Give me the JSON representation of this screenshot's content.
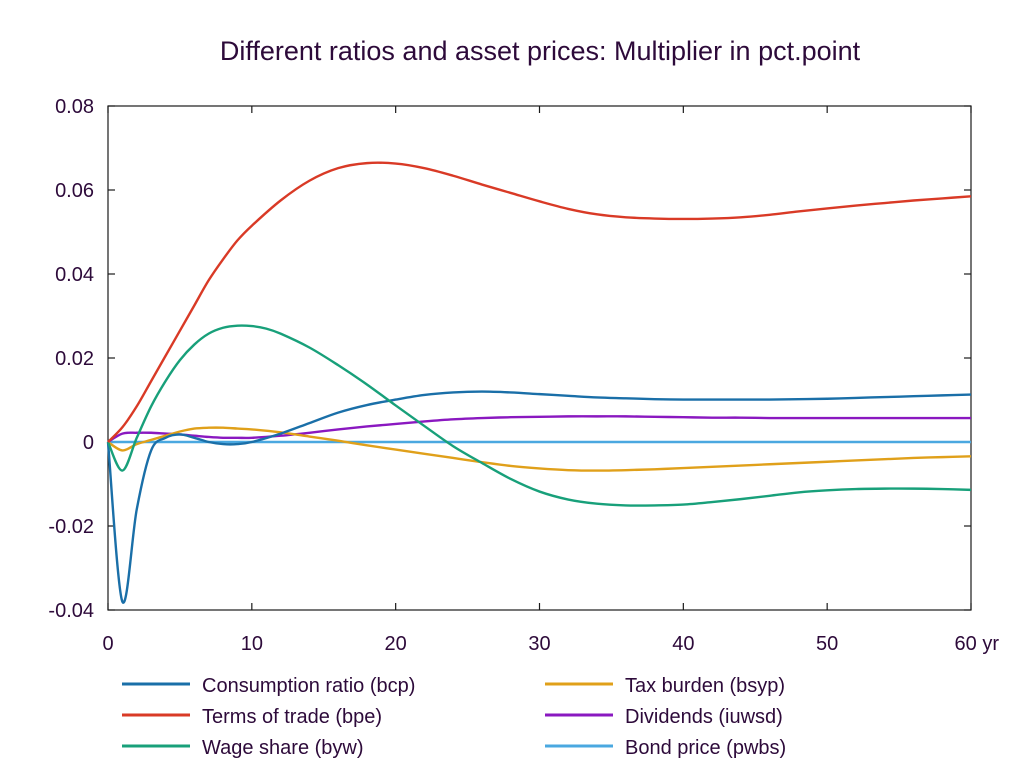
{
  "chart_data": {
    "type": "line",
    "title": "Different ratios and asset prices: Multiplier in pct.point",
    "xlabel": "",
    "ylabel": "",
    "xlim": [
      0,
      60
    ],
    "ylim": [
      -0.04,
      0.08
    ],
    "x_ticks": [
      0,
      10,
      20,
      30,
      40,
      50,
      60
    ],
    "x_tick_labels": [
      "0",
      "10",
      "20",
      "30",
      "40",
      "50",
      "60 yr"
    ],
    "y_ticks": [
      -0.04,
      -0.02,
      0,
      0.02,
      0.04,
      0.06,
      0.08
    ],
    "y_tick_labels": [
      "-0.04",
      "-0.02",
      "0",
      "0.02",
      "0.04",
      "0.06",
      "0.08"
    ],
    "grid": false,
    "legend_position": "bottom",
    "series": [
      {
        "name": "Consumption ratio (bcp)",
        "color": "#1a6fa8",
        "x": [
          0,
          1,
          2,
          3,
          4,
          5,
          6,
          7,
          8,
          9,
          10,
          12,
          14,
          16,
          18,
          20,
          22,
          24,
          26,
          28,
          30,
          32,
          34,
          36,
          38,
          40,
          42,
          44,
          46,
          48,
          50,
          52,
          54,
          56,
          58,
          60
        ],
        "y": [
          0,
          -0.038,
          -0.016,
          -0.002,
          0.001,
          0.0018,
          0.001,
          0,
          -0.0005,
          -0.0005,
          0,
          0.002,
          0.0045,
          0.007,
          0.0088,
          0.0101,
          0.0112,
          0.0118,
          0.012,
          0.0118,
          0.0114,
          0.011,
          0.0106,
          0.0104,
          0.0102,
          0.0101,
          0.0101,
          0.0101,
          0.0101,
          0.0102,
          0.0103,
          0.0105,
          0.0107,
          0.0109,
          0.0111,
          0.0113
        ]
      },
      {
        "name": "Terms of trade (bpe)",
        "color": "#d93a26",
        "x": [
          0,
          1,
          2,
          3,
          4,
          5,
          6,
          7,
          8,
          9,
          10,
          12,
          14,
          16,
          18,
          20,
          22,
          24,
          26,
          28,
          30,
          32,
          34,
          36,
          38,
          40,
          42,
          44,
          46,
          48,
          50,
          52,
          54,
          56,
          58,
          60
        ],
        "y": [
          0,
          0.0035,
          0.0085,
          0.0145,
          0.0205,
          0.0265,
          0.0325,
          0.0385,
          0.0435,
          0.048,
          0.0515,
          0.0575,
          0.0622,
          0.0652,
          0.0664,
          0.0663,
          0.0652,
          0.0634,
          0.0613,
          0.0593,
          0.0573,
          0.0555,
          0.0542,
          0.0535,
          0.0532,
          0.0531,
          0.0532,
          0.0535,
          0.0541,
          0.0549,
          0.0556,
          0.0563,
          0.0569,
          0.0575,
          0.058,
          0.0585
        ]
      },
      {
        "name": "Wage share (byw)",
        "color": "#18a07a",
        "x": [
          0,
          1,
          2,
          3,
          4,
          5,
          6,
          7,
          8,
          9,
          10,
          11,
          12,
          14,
          16,
          18,
          20,
          22,
          24,
          26,
          28,
          30,
          32,
          34,
          36,
          38,
          40,
          42,
          44,
          46,
          48,
          50,
          52,
          54,
          56,
          58,
          60
        ],
        "y": [
          0,
          -0.0068,
          0.001,
          0.0085,
          0.0145,
          0.0195,
          0.0232,
          0.0258,
          0.0272,
          0.0277,
          0.0276,
          0.027,
          0.0258,
          0.0225,
          0.0183,
          0.0137,
          0.0087,
          0.0038,
          -0.001,
          -0.005,
          -0.0088,
          -0.0118,
          -0.0137,
          -0.0147,
          -0.0151,
          -0.0151,
          -0.0149,
          -0.0143,
          -0.0136,
          -0.0128,
          -0.012,
          -0.0115,
          -0.0112,
          -0.0111,
          -0.0111,
          -0.0112,
          -0.0114
        ]
      },
      {
        "name": "Tax burden (bsyp)",
        "color": "#e0a01a",
        "x": [
          0,
          1,
          2,
          3,
          4,
          5,
          6,
          7,
          8,
          9,
          10,
          12,
          14,
          16,
          18,
          20,
          22,
          24,
          26,
          28,
          30,
          32,
          34,
          36,
          38,
          40,
          42,
          44,
          46,
          48,
          50,
          52,
          54,
          56,
          58,
          60
        ],
        "y": [
          0,
          -0.002,
          -0.0005,
          0.0005,
          0.0015,
          0.0025,
          0.0032,
          0.0034,
          0.0034,
          0.0032,
          0.003,
          0.0023,
          0.0013,
          0.0003,
          -0.0008,
          -0.0018,
          -0.0028,
          -0.0038,
          -0.0048,
          -0.0057,
          -0.0063,
          -0.0067,
          -0.0068,
          -0.0067,
          -0.0065,
          -0.0062,
          -0.0059,
          -0.0056,
          -0.0053,
          -0.005,
          -0.0047,
          -0.0044,
          -0.0041,
          -0.0038,
          -0.0036,
          -0.0034
        ]
      },
      {
        "name": "Dividends (iuwsd)",
        "color": "#8a18c0",
        "x": [
          0,
          1,
          2,
          3,
          4,
          5,
          6,
          7,
          8,
          9,
          10,
          12,
          14,
          16,
          18,
          20,
          22,
          24,
          26,
          28,
          30,
          32,
          34,
          36,
          38,
          40,
          42,
          44,
          46,
          48,
          50,
          52,
          54,
          56,
          58,
          60
        ],
        "y": [
          0,
          0.002,
          0.0022,
          0.0022,
          0.002,
          0.0018,
          0.0015,
          0.0012,
          0.001,
          0.001,
          0.001,
          0.0015,
          0.0022,
          0.003,
          0.0037,
          0.0043,
          0.0049,
          0.0054,
          0.0057,
          0.0059,
          0.006,
          0.0061,
          0.0061,
          0.0061,
          0.006,
          0.0059,
          0.0058,
          0.0058,
          0.0057,
          0.0057,
          0.0057,
          0.0057,
          0.0057,
          0.0057,
          0.0057,
          0.0057
        ]
      },
      {
        "name": "Bond price (pwbs)",
        "color": "#4aa8e0",
        "x": [
          0,
          60
        ],
        "y": [
          0,
          0
        ]
      }
    ]
  }
}
